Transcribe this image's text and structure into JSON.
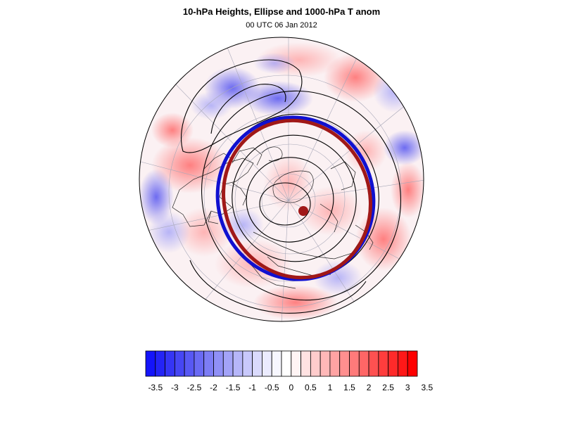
{
  "figure": {
    "title": "10-hPa Heights, Ellipse and 1000-hPa T anom",
    "subtitle": "00 UTC 06 Jan 2012"
  },
  "colorbar": {
    "levels": [
      -3.5,
      -3.25,
      -3,
      -2.75,
      -2.5,
      -2.25,
      -2,
      -1.75,
      -1.5,
      -1.25,
      -1,
      -0.75,
      -0.5,
      -0.25,
      0,
      0.25,
      0.5,
      0.75,
      1,
      1.25,
      1.5,
      1.75,
      2,
      2.25,
      2.5,
      2.75,
      3,
      3.25,
      3.5
    ],
    "tick_labels": [
      "-3.5",
      "-3",
      "-2.5",
      "-2",
      "-1.5",
      "-1",
      "-0.5",
      "0",
      "0.5",
      "1",
      "1.5",
      "2",
      "2.5",
      "3",
      "3.5"
    ],
    "colors": [
      "#1414fa",
      "#2424f6",
      "#3535f5",
      "#4646f4",
      "#5858f4",
      "#6a6af4",
      "#7d7df5",
      "#9090f6",
      "#a3a3f8",
      "#b6b6f9",
      "#c8c8fb",
      "#dadafc",
      "#ebebfe",
      "#f7f7ff",
      "#ffffff",
      "#fff4f4",
      "#ffe2e2",
      "#ffcccc",
      "#ffb8b8",
      "#ffa3a3",
      "#ff8f8f",
      "#ff7a7a",
      "#ff6666",
      "#ff5151",
      "#ff3d3d",
      "#ff2a2a",
      "#ff1818",
      "#ff0000"
    ]
  },
  "map": {
    "projection": "polar-stereographic-north",
    "fill_field": "1000-hPa T anom",
    "contour_field": "10-hPa Heights",
    "ellipse_colors": {
      "blue": "#1010d0",
      "red": "#a01818"
    },
    "vortex_center_color": "#a01818"
  }
}
